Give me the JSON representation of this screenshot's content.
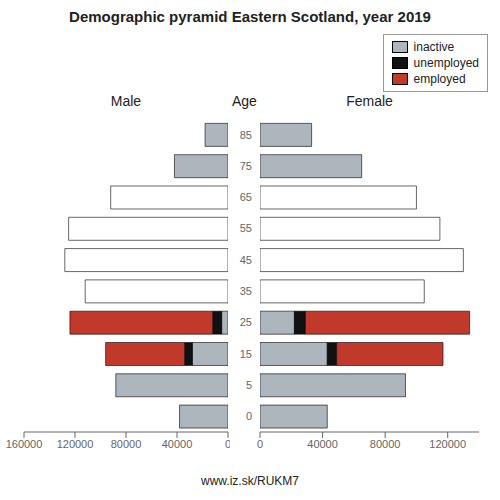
{
  "title": "Demographic pyramid Eastern Scotland, year 2019",
  "annotations": [
    "www.iz.sk/RUKM7"
  ],
  "chart_data": [
    {
      "type": "bar",
      "orientation": "horizontal",
      "stacked": true,
      "title": "Male",
      "categories": [
        "85",
        "75",
        "65",
        "55",
        "45",
        "35",
        "25",
        "15",
        "5",
        "0"
      ],
      "series": [
        {
          "name": "inactive",
          "color": "#adb5bd",
          "values": [
            18000,
            42000,
            0,
            0,
            0,
            0,
            5000,
            28000,
            88000,
            38000
          ]
        },
        {
          "name": "unemployed",
          "color": "#111111",
          "values": [
            0,
            0,
            0,
            0,
            0,
            0,
            7000,
            6000,
            0,
            0
          ]
        },
        {
          "name": "employed",
          "color": "#c0392b",
          "colors": [
            "#c0392b",
            "#c0392b",
            "#ffffff",
            "#ffffff",
            "#ffffff",
            "#ffffff",
            "#c0392b",
            "#c0392b",
            "#c0392b",
            "#c0392b"
          ],
          "values": [
            0,
            0,
            92000,
            125000,
            128000,
            112000,
            112000,
            62000,
            0,
            0
          ]
        }
      ],
      "xlim": [
        160000,
        0
      ],
      "xticks": [
        160000,
        120000,
        80000,
        40000,
        0
      ],
      "grid": false
    },
    {
      "type": "bar",
      "orientation": "horizontal",
      "stacked": true,
      "title": "Female",
      "ylabel": "Age",
      "categories": [
        "85",
        "75",
        "65",
        "55",
        "45",
        "35",
        "25",
        "15",
        "5",
        "0"
      ],
      "series": [
        {
          "name": "inactive",
          "color": "#adb5bd",
          "values": [
            33000,
            65000,
            0,
            0,
            0,
            0,
            22000,
            43000,
            93000,
            43000
          ]
        },
        {
          "name": "unemployed",
          "color": "#111111",
          "values": [
            0,
            0,
            0,
            0,
            0,
            0,
            7000,
            6000,
            0,
            0
          ]
        },
        {
          "name": "employed",
          "color": "#c0392b",
          "colors": [
            "#c0392b",
            "#c0392b",
            "#ffffff",
            "#ffffff",
            "#ffffff",
            "#ffffff",
            "#c0392b",
            "#c0392b",
            "#c0392b",
            "#c0392b"
          ],
          "values": [
            0,
            0,
            100000,
            115000,
            130000,
            105000,
            105000,
            68000,
            0,
            0
          ]
        }
      ],
      "xlim": [
        0,
        140000
      ],
      "xticks": [
        0,
        40000,
        80000,
        120000
      ],
      "grid": false,
      "legend": "upper right"
    }
  ]
}
